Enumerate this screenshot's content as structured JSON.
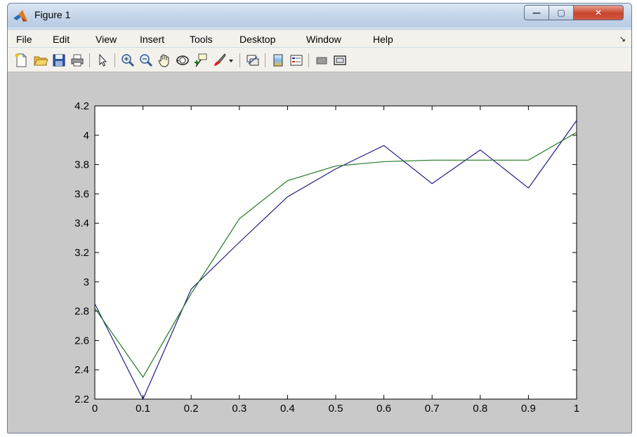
{
  "window": {
    "title": "Figure 1",
    "controls": {
      "minimize": "—",
      "maximize": "▢",
      "close": "✕"
    }
  },
  "menubar": {
    "items": [
      "File",
      "Edit",
      "View",
      "Insert",
      "Tools",
      "Desktop",
      "Window",
      "Help"
    ],
    "overflow_arrow": "↘"
  },
  "toolbar": {
    "icons": [
      "new-figure-icon",
      "open-file-icon",
      "save-icon",
      "print-icon",
      "pointer-icon",
      "zoom-in-icon",
      "zoom-out-icon",
      "pan-hand-icon",
      "rotate-3d-icon",
      "data-cursor-icon",
      "brush-icon",
      "brush-dropdown-icon",
      "link-plot-icon",
      "colorbar-icon",
      "legend-icon",
      "hide-plot-tools-icon",
      "show-plot-tools-icon"
    ]
  },
  "colors": {
    "series_1": "#1c1c8c",
    "series_2": "#1e7a1e",
    "plot_background": "#ffffff",
    "figure_background": "#c9c9c9"
  },
  "chart_data": {
    "type": "line",
    "title": "",
    "xlabel": "",
    "ylabel": "",
    "xlim": [
      0,
      1
    ],
    "ylim": [
      2.2,
      4.2
    ],
    "xticks": [
      "0",
      "0.1",
      "0.2",
      "0.3",
      "0.4",
      "0.5",
      "0.6",
      "0.7",
      "0.8",
      "0.9",
      "1"
    ],
    "yticks": [
      "2.2",
      "2.4",
      "2.6",
      "2.8",
      "3",
      "3.2",
      "3.4",
      "3.6",
      "3.8",
      "4",
      "4.2"
    ],
    "grid": false,
    "legend": "none",
    "x": [
      0,
      0.1,
      0.2,
      0.3,
      0.4,
      0.5,
      0.6,
      0.7,
      0.8,
      0.9,
      1.0
    ],
    "series": [
      {
        "values": [
          2.85,
          2.2,
          2.95,
          3.27,
          3.58,
          3.77,
          3.93,
          3.67,
          3.9,
          3.64,
          4.1
        ]
      },
      {
        "values": [
          2.82,
          2.35,
          2.92,
          3.43,
          3.69,
          3.79,
          3.82,
          3.83,
          3.83,
          3.83,
          4.02
        ]
      }
    ]
  }
}
